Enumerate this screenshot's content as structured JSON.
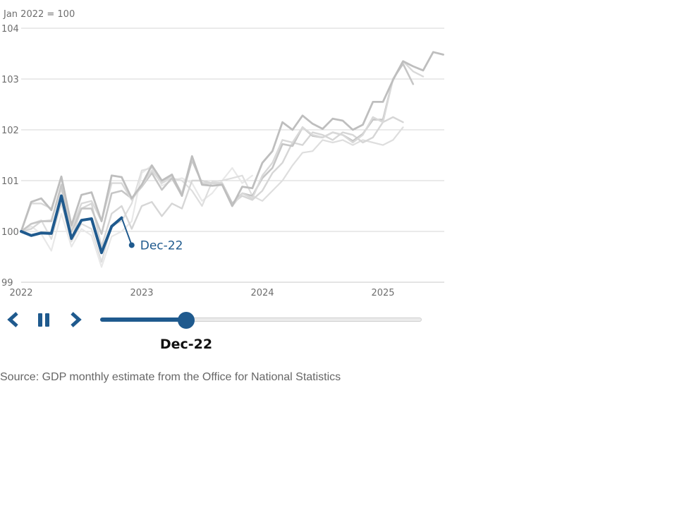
{
  "chart_data": {
    "type": "line",
    "ylabel": "Jan 2022 = 100",
    "ylim": [
      99,
      104
    ],
    "y_ticks": [
      "99",
      "100",
      "101",
      "102",
      "103",
      "104"
    ],
    "x_ticks": [
      "2022",
      "2023",
      "2024",
      "2025"
    ],
    "x_start": "2022-01",
    "grid": true,
    "current_vintage": {
      "label": "Dec-22",
      "x": [
        "2022-01",
        "2022-02",
        "2022-03",
        "2022-04",
        "2022-05",
        "2022-06",
        "2022-07",
        "2022-08",
        "2022-09",
        "2022-10",
        "2022-11",
        "2022-12"
      ],
      "values": [
        100.0,
        99.92,
        99.97,
        99.96,
        100.7,
        99.86,
        100.22,
        100.25,
        99.58,
        100.1,
        100.27,
        99.73
      ],
      "color": "#1f5a8e"
    },
    "previous_vintages": [
      {
        "color": "#e8e8e8",
        "width": 2.2,
        "values": [
          100.0,
          100.1,
          99.95,
          99.62,
          100.35,
          99.7,
          100.05,
          99.92,
          99.3,
          99.9,
          100.0,
          100.2,
          101.15,
          101.3,
          100.9,
          101.0,
          101.05,
          100.95,
          100.6,
          100.75,
          101.0,
          101.25,
          100.95,
          101.1
        ]
      },
      {
        "color": "#dedede",
        "width": 2.2,
        "values": [
          100.0,
          100.15,
          100.22,
          99.85,
          100.55,
          99.8,
          100.15,
          100.05,
          99.4,
          100.12,
          100.2,
          100.55,
          101.2,
          101.25,
          100.95,
          101.05,
          101.0,
          100.8,
          100.5,
          100.98,
          101.0,
          101.05,
          101.1,
          100.7,
          100.6,
          100.8,
          101.0,
          101.3,
          101.55,
          101.58,
          101.8,
          101.75,
          101.8,
          101.7,
          101.8,
          101.75,
          101.7,
          101.8,
          102.05
        ]
      },
      {
        "color": "#d6d6d6",
        "width": 2.4,
        "values": [
          100.0,
          100.05,
          100.2,
          100.22,
          100.85,
          99.85,
          100.45,
          100.55,
          99.7,
          100.35,
          100.5,
          100.05,
          100.5,
          100.58,
          100.3,
          100.55,
          100.45,
          101.0,
          101.0,
          100.95,
          100.95,
          100.55,
          100.7,
          100.62,
          100.8,
          101.15,
          101.35,
          101.75,
          101.7,
          101.95,
          101.9,
          101.8,
          101.95,
          101.9,
          101.75,
          101.85,
          102.15,
          102.25,
          102.15
        ]
      },
      {
        "color": "#c6c6c6",
        "width": 2.6,
        "values": [
          100.0,
          100.15,
          100.2,
          100.2,
          100.92,
          100.0,
          100.45,
          100.45,
          99.95,
          100.75,
          100.8,
          100.65,
          100.88,
          101.15,
          100.82,
          101.05,
          100.7,
          101.4,
          100.95,
          100.95,
          100.95,
          100.55,
          100.75,
          100.7,
          101.05,
          101.25,
          101.72,
          101.68,
          102.05,
          101.88,
          101.85,
          101.95,
          101.9,
          101.78,
          101.92,
          102.2,
          102.2,
          103.0,
          103.3,
          102.9
        ]
      },
      {
        "color": "#d9d9d9",
        "width": 2.4,
        "values": [
          100.0,
          100.55,
          100.55,
          100.45,
          101.05,
          100.05,
          100.55,
          100.6,
          100.2,
          100.95,
          100.95,
          100.62,
          100.9,
          101.2,
          100.95,
          101.1,
          100.75,
          101.45,
          100.95,
          100.95,
          100.95,
          100.5,
          100.75,
          100.65,
          101.1,
          101.35,
          101.8,
          101.75,
          102.05,
          101.9,
          101.85,
          101.95,
          101.9,
          101.75,
          101.9,
          102.25,
          102.15,
          103.0,
          103.35,
          103.15,
          103.05
        ]
      },
      {
        "color": "#bebebe",
        "width": 2.8,
        "values": [
          100.0,
          100.58,
          100.65,
          100.42,
          101.08,
          100.12,
          100.72,
          100.77,
          100.2,
          101.1,
          101.07,
          100.65,
          100.92,
          101.3,
          101.0,
          101.12,
          100.7,
          101.48,
          100.92,
          100.9,
          100.92,
          100.5,
          100.88,
          100.85,
          101.35,
          101.58,
          102.15,
          102.0,
          102.28,
          102.12,
          102.02,
          102.22,
          102.18,
          102.0,
          102.1,
          102.55,
          102.55,
          102.98,
          103.35,
          103.25,
          103.17,
          103.53,
          103.48
        ]
      }
    ]
  },
  "controls": {
    "prev_label": "previous",
    "play_label": "pause",
    "next_label": "next",
    "slider_value": 0.268,
    "slider_label": "Dec-22",
    "accent": "#1f5a8e"
  },
  "source_text": "Source: GDP monthly estimate from the Office for National Statistics"
}
